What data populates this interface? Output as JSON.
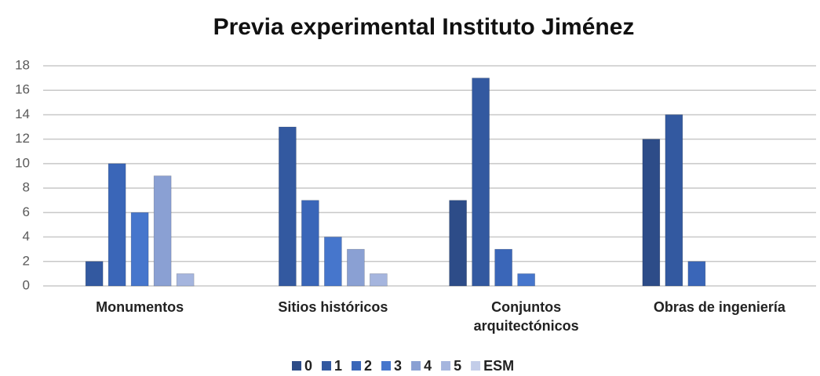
{
  "chart_data": {
    "type": "bar",
    "title": "Previa experimental Instituto Jiménez",
    "categories": [
      "Monumentos",
      "Sitios históricos",
      "Conjuntos arquitectónicos",
      "Obras de ingeniería"
    ],
    "series": [
      {
        "name": "0",
        "color": "#2d4c88",
        "values": [
          0,
          0,
          7,
          12
        ]
      },
      {
        "name": "1",
        "color": "#3359a0",
        "values": [
          2,
          13,
          17,
          14
        ]
      },
      {
        "name": "2",
        "color": "#3a66b8",
        "values": [
          10,
          7,
          3,
          2
        ]
      },
      {
        "name": "3",
        "color": "#4676cc",
        "values": [
          6,
          4,
          1,
          0
        ]
      },
      {
        "name": "4",
        "color": "#8aa0d3",
        "values": [
          9,
          3,
          0,
          0
        ]
      },
      {
        "name": "5",
        "color": "#a5b5de",
        "values": [
          1,
          1,
          0,
          0
        ]
      },
      {
        "name": "ESM",
        "color": "#c3cde9",
        "values": [
          0,
          0,
          0,
          0
        ]
      }
    ],
    "ylim": [
      0,
      18
    ],
    "yticks": [
      0,
      2,
      4,
      6,
      8,
      10,
      12,
      14,
      16,
      18
    ],
    "grid": true,
    "legend": "bottom"
  }
}
